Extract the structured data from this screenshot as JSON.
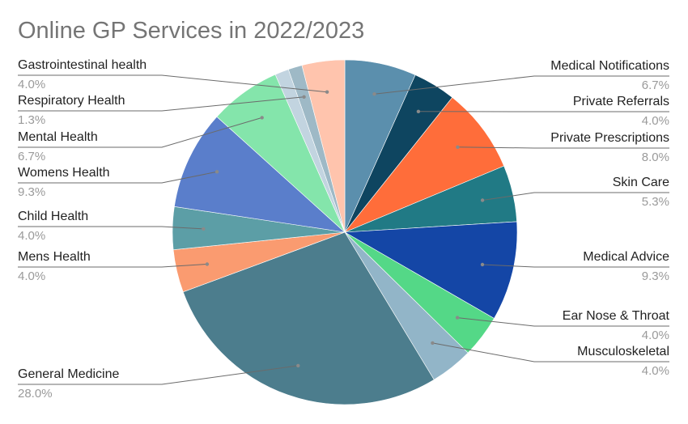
{
  "title": "Online GP Services in 2022/2023",
  "chart_data": {
    "type": "pie",
    "title": "Online GP Services in 2022/2023",
    "unit": "%",
    "slices": [
      {
        "label": "Medical Notifications",
        "value": 6.7,
        "display": "6.7%",
        "color": "#5b8fad"
      },
      {
        "label": "Private Referrals",
        "value": 4.0,
        "display": "4.0%",
        "color": "#0e4560"
      },
      {
        "label": "Private Prescriptions",
        "value": 8.0,
        "display": "8.0%",
        "color": "#ff6d3a"
      },
      {
        "label": "Skin Care",
        "value": 5.3,
        "display": "5.3%",
        "color": "#217a85"
      },
      {
        "label": "Medical Advice",
        "value": 9.3,
        "display": "9.3%",
        "color": "#1446a6"
      },
      {
        "label": "Ear Nose & Throat",
        "value": 4.0,
        "display": "4.0%",
        "color": "#54d887"
      },
      {
        "label": "Musculoskeletal",
        "value": 4.0,
        "display": "4.0%",
        "color": "#92b5c8"
      },
      {
        "label": "General Medicine",
        "value": 28.0,
        "display": "28.0%",
        "color": "#4c7d8d"
      },
      {
        "label": "Mens Health",
        "value": 4.0,
        "display": "4.0%",
        "color": "#fa9b70"
      },
      {
        "label": "Child Health",
        "value": 4.0,
        "display": "4.0%",
        "color": "#5c9ea6"
      },
      {
        "label": "Womens Health",
        "value": 9.3,
        "display": "9.3%",
        "color": "#5a7ecb"
      },
      {
        "label": "Mental Health",
        "value": 6.7,
        "display": "6.7%",
        "color": "#84e5ab"
      },
      {
        "label": "",
        "value": 1.3,
        "display": "",
        "color": "#c2d4e0"
      },
      {
        "label": "Respiratory Health",
        "value": 1.3,
        "display": "1.3%",
        "color": "#9eb9c6"
      },
      {
        "label": "Gastrointestinal health",
        "value": 4.0,
        "display": "4.0%",
        "color": "#ffc4ad"
      }
    ]
  }
}
